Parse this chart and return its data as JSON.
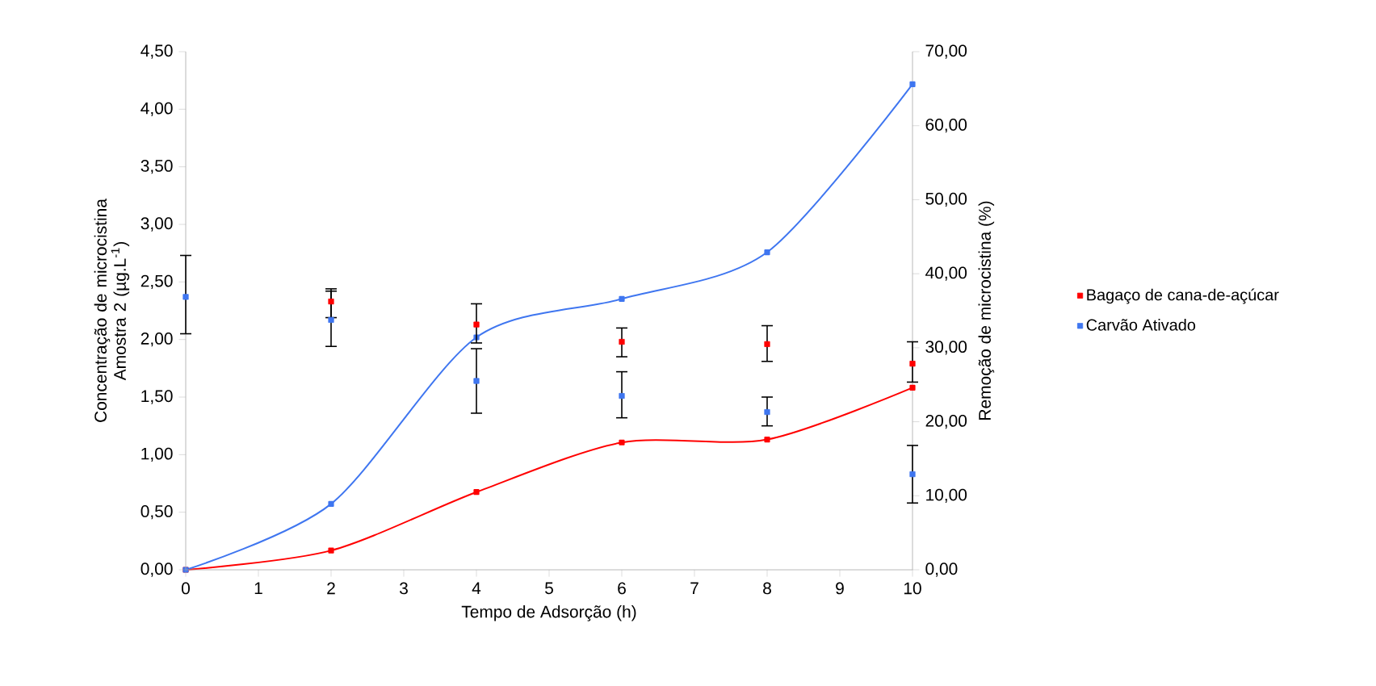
{
  "chart_data": {
    "type": "scatter",
    "xlabel": "Tempo de Adsorção (h)",
    "ylabel": "Concentração de microcistina Amostra 2 (µg.L$^{-1}$)",
    "y2label": "Remoção de microcistina (%)",
    "x": [
      0,
      2,
      4,
      6,
      8,
      10
    ],
    "xlim": [
      0,
      10
    ],
    "xticks": [
      0,
      1,
      2,
      3,
      4,
      5,
      6,
      7,
      8,
      9,
      10
    ],
    "ylim": [
      0,
      4.5
    ],
    "yticks": [
      {
        "value": 0,
        "label": "0,00"
      },
      {
        "value": 0.5,
        "label": "0,50"
      },
      {
        "value": 1,
        "label": "1,00"
      },
      {
        "value": 1.5,
        "label": "1,50"
      },
      {
        "value": 2,
        "label": "2,00"
      },
      {
        "value": 2.5,
        "label": "2,50"
      },
      {
        "value": 3,
        "label": "3,00"
      },
      {
        "value": 3.5,
        "label": "3,50"
      },
      {
        "value": 4,
        "label": "4,00"
      },
      {
        "value": 4.5,
        "label": "4,50"
      }
    ],
    "y2lim": [
      0,
      70
    ],
    "y2ticks": [
      {
        "value": 0,
        "label": "0,00"
      },
      {
        "value": 10,
        "label": "10,00"
      },
      {
        "value": 20,
        "label": "20,00"
      },
      {
        "value": 30,
        "label": "30,00"
      },
      {
        "value": 40,
        "label": "40,00"
      },
      {
        "value": 50,
        "label": "50,00"
      },
      {
        "value": 60,
        "label": "60,00"
      },
      {
        "value": 70,
        "label": "70,00"
      }
    ],
    "legend": "right",
    "marker": "square",
    "series": [
      {
        "name": "Bagaço de cana-de-açúcar",
        "color": "#ff0000",
        "values": [
          null,
          2.33,
          2.13,
          1.98,
          1.96,
          1.79
        ],
        "errors": [
          null,
          [
            2.19,
            2.44
          ],
          [
            1.97,
            2.31
          ],
          [
            1.85,
            2.1
          ],
          [
            1.81,
            2.12
          ],
          [
            1.63,
            1.98
          ]
        ]
      },
      {
        "name": "Carvão Ativado",
        "color": "#3f76f0",
        "values": [
          2.37,
          2.17,
          1.64,
          1.51,
          1.37,
          0.83
        ],
        "errors": [
          [
            2.05,
            2.73
          ],
          [
            1.94,
            2.42
          ],
          [
            1.36,
            1.92
          ],
          [
            1.32,
            1.72
          ],
          [
            1.25,
            1.5
          ],
          [
            0.58,
            1.08
          ]
        ]
      },
      {
        "type": "line",
        "axis": "y2",
        "color": "#ff0000",
        "values": [
          0,
          2.6,
          10.5,
          17.2,
          17.6,
          24.6
        ]
      },
      {
        "type": "line",
        "axis": "y2",
        "color": "#3f76f0",
        "values": [
          0,
          8.9,
          31.4,
          36.6,
          42.9,
          65.6
        ]
      }
    ]
  }
}
